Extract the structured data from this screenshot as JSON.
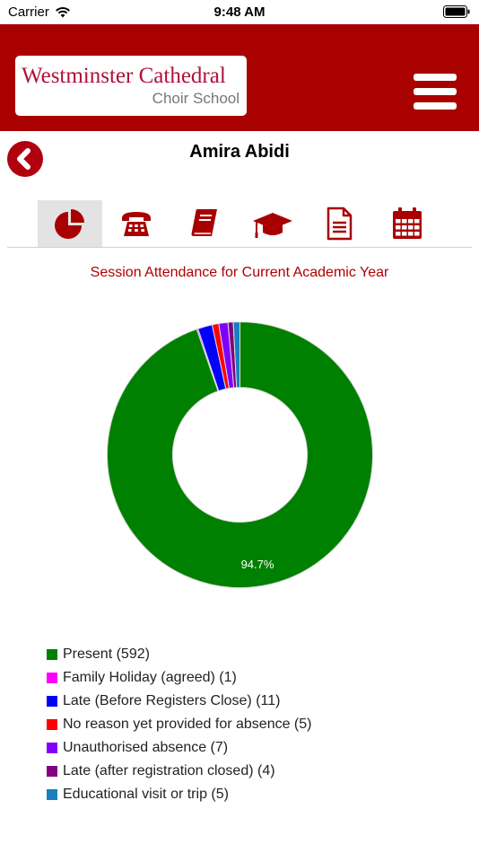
{
  "status_bar": {
    "carrier": "Carrier",
    "time": "9:48 AM",
    "icons": [
      "wifi-icon",
      "battery-icon"
    ]
  },
  "header": {
    "logo_line1": "Westminster Cathedral",
    "logo_line2": "Choir School",
    "icons": [
      "hamburger-menu-icon"
    ],
    "colors": {
      "bar": "#a90000",
      "logo_text": "#b0103a",
      "icon_red": "#a80000"
    }
  },
  "student": {
    "name": "Amira Abidi",
    "icons": [
      "back-arrow-icon"
    ]
  },
  "tabs": [
    {
      "icon": "pie-chart-icon",
      "active": true
    },
    {
      "icon": "telephone-icon",
      "active": false
    },
    {
      "icon": "book-icon",
      "active": false
    },
    {
      "icon": "graduation-cap-icon",
      "active": false
    },
    {
      "icon": "document-icon",
      "active": false
    },
    {
      "icon": "calendar-icon",
      "active": false
    }
  ],
  "chart_data": {
    "type": "pie",
    "variant": "donut",
    "title": "Session Attendance for Current Academic Year",
    "slice_label": "94.7%",
    "legend_position": "bottom",
    "slices": [
      {
        "name": "Present",
        "value": 592,
        "legend": "Present (592)",
        "color": "#008000"
      },
      {
        "name": "Family Holiday (agreed)",
        "value": 1,
        "legend": "Family Holiday (agreed) (1)",
        "color": "#ff00ff"
      },
      {
        "name": "Late (Before Registers Close)",
        "value": 11,
        "legend": "Late (Before Registers Close) (11)",
        "color": "#0000ff"
      },
      {
        "name": "No reason yet provided for absence",
        "value": 5,
        "legend": "No reason yet provided for absence (5)",
        "color": "#ff0000"
      },
      {
        "name": "Unauthorised absence",
        "value": 7,
        "legend": "Unauthorised absence (7)",
        "color": "#8000ff"
      },
      {
        "name": "Late (after registration closed)",
        "value": 4,
        "legend": "Late (after registration closed) (4)",
        "color": "#800080"
      },
      {
        "name": "Educational visit or trip",
        "value": 5,
        "legend": "Educational visit or trip (5)",
        "color": "#1a7fc0"
      }
    ]
  }
}
